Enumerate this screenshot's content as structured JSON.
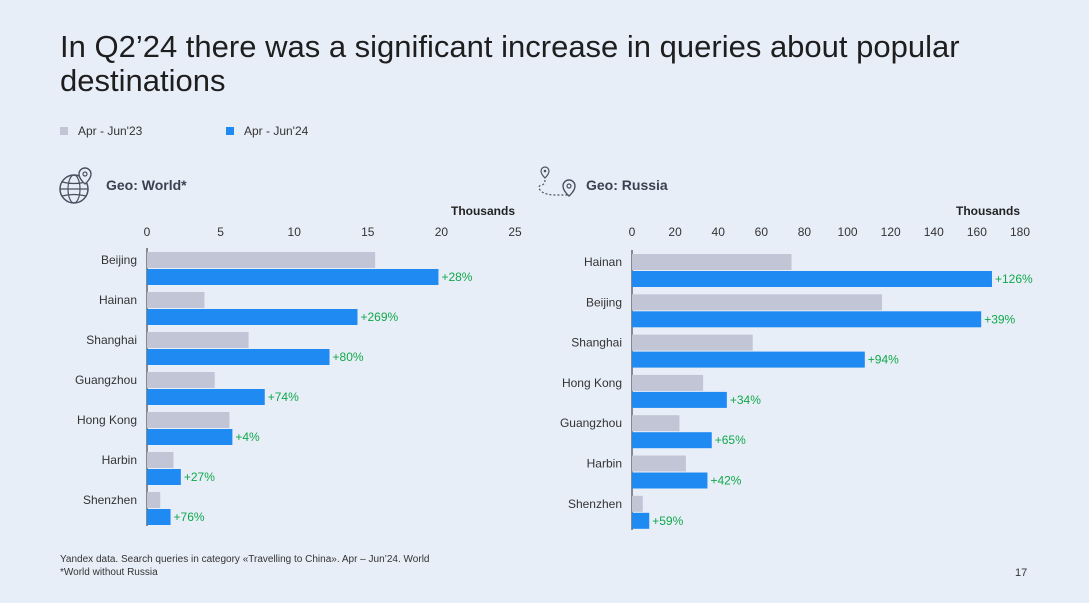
{
  "title": "In Q2’24 there was a significant increase in queries about popular destinations",
  "legend": [
    {
      "label": "Apr - Jun'23",
      "color": "#c1c5d6"
    },
    {
      "label": "Apr - Jun'24",
      "color": "#1f8af2"
    }
  ],
  "colors": {
    "prev": "#c1c5d6",
    "curr": "#1f8af2",
    "growth": "#10a84a"
  },
  "geo_world": {
    "label": "Geo: World*",
    "icon": "globe-pin-icon"
  },
  "geo_russia": {
    "label": "Geo: Russia",
    "icon": "route-pin-icon"
  },
  "footnote": {
    "line1": "Yandex data. Search queries in category «Travelling to China». Apr  – Jun’24. World",
    "line2": "*World without Russia"
  },
  "page_number": "17",
  "chart_data": [
    {
      "type": "bar",
      "orientation": "horizontal",
      "unit_label": "Thousands",
      "xlim": [
        0,
        25
      ],
      "ticks": [
        0,
        5,
        10,
        15,
        20,
        25
      ],
      "categories": [
        "Beijing",
        "Hainan",
        "Shanghai",
        "Guangzhou",
        "Hong Kong",
        "Harbin",
        "Shenzhen"
      ],
      "series": [
        {
          "name": "Apr - Jun'23",
          "values": [
            15.5,
            3.9,
            6.9,
            4.6,
            5.6,
            1.8,
            0.9
          ]
        },
        {
          "name": "Apr - Jun'24",
          "values": [
            19.8,
            14.3,
            12.4,
            8.0,
            5.8,
            2.3,
            1.6
          ]
        }
      ],
      "growth_labels": [
        "+28%",
        "+269%",
        "+80%",
        "+74%",
        "+4%",
        "+27%",
        "+76%"
      ]
    },
    {
      "type": "bar",
      "orientation": "horizontal",
      "unit_label": "Thousands",
      "xlim": [
        0,
        180
      ],
      "ticks": [
        0,
        20,
        40,
        60,
        80,
        100,
        120,
        140,
        160,
        180
      ],
      "categories": [
        "Hainan",
        "Beijing",
        "Shanghai",
        "Hong Kong",
        "Guangzhou",
        "Harbin",
        "Shenzhen"
      ],
      "series": [
        {
          "name": "Apr - Jun'23",
          "values": [
            74,
            116,
            56,
            33,
            22,
            25,
            5
          ]
        },
        {
          "name": "Apr - Jun'24",
          "values": [
            167,
            162,
            108,
            44,
            37,
            35,
            8
          ]
        }
      ],
      "growth_labels": [
        "+126%",
        "+39%",
        "+94%",
        "+34%",
        "+65%",
        "+42%",
        "+59%"
      ]
    }
  ]
}
